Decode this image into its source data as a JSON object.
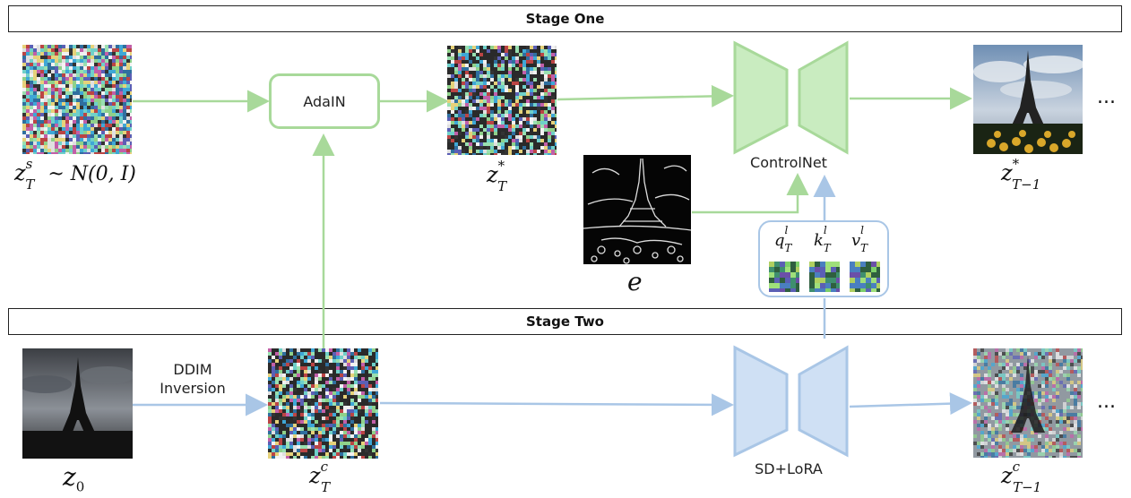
{
  "stage_one": {
    "title": "Stage One"
  },
  "stage_two": {
    "title": "Stage Two"
  },
  "nodes": {
    "adain": "AdaIN",
    "controlnet": "ControlNet",
    "sd_lora": "SD+LoRA",
    "ddim_inversion_line1": "DDIM",
    "ddim_inversion_line2": "Inversion"
  },
  "labels": {
    "zsT_base": "z",
    "zsT_sup": "s",
    "zsT_sub": "T",
    "zsT_rest": " ~ N(0, I)",
    "zstarT_base": "z",
    "zstarT_sup": "*",
    "zstarT_sub": "T",
    "zstarT1_base": "z",
    "zstarT1_sup": "*",
    "zstarT1_sub": "T−1",
    "e": "e",
    "z0_base": "z",
    "z0_sub": "0",
    "zcT_base": "z",
    "zcT_sup": "c",
    "zcT_sub": "T",
    "zcT1_base": "z",
    "zcT1_sup": "c",
    "zcT1_sub": "T−1",
    "q_base": "q",
    "q_sup": "l",
    "q_sub": "T",
    "k_base": "k",
    "k_sup": "l",
    "k_sub": "T",
    "v_base": "v",
    "v_sup": "l",
    "v_sub": "T"
  },
  "ellipsis": "...",
  "colors": {
    "stage_one_accent": "#a8d99a",
    "stage_two_accent": "#a9c6e6",
    "stage_one_fill": "#c9ecc0",
    "stage_two_fill": "#cfe0f4"
  },
  "icons": {
    "noise_image": "noise-image",
    "photo": "eiffel-tower-photo",
    "edge_map": "edge-map-image",
    "unet": "unet-shape"
  }
}
